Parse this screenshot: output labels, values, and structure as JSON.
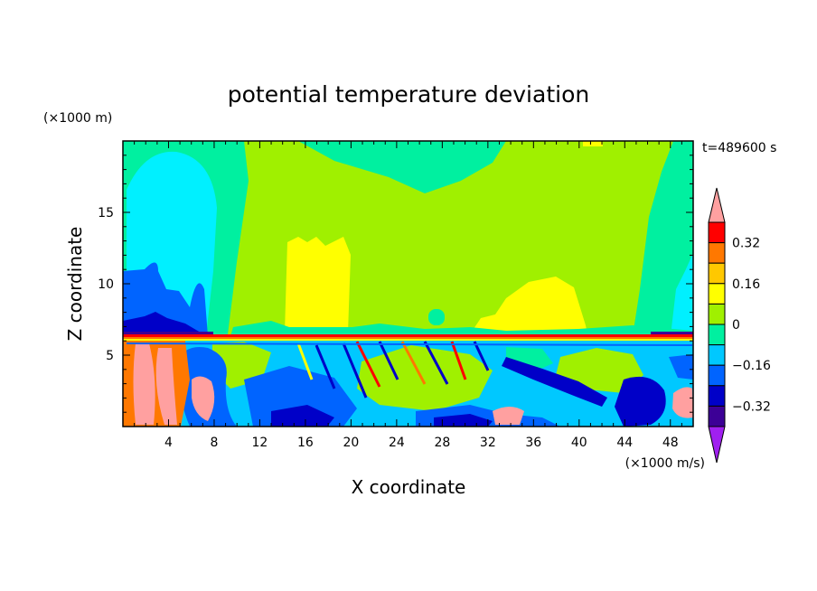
{
  "chart_data": {
    "type": "heatmap",
    "title": "potential temperature deviation",
    "xlabel": "X coordinate",
    "ylabel": "Z coordinate",
    "x_unit": "(×1000 m/s)",
    "y_unit": "(×1000 m)",
    "time_label": "t=489600 s",
    "xlim": [
      0,
      50
    ],
    "ylim": [
      0,
      20
    ],
    "x_ticks": [
      4,
      8,
      12,
      16,
      20,
      24,
      28,
      32,
      36,
      40,
      44,
      48
    ],
    "y_ticks": [
      5,
      10,
      15
    ],
    "colorbar": {
      "labels": [
        "0.32",
        "0.16",
        "0",
        "−0.16",
        "−0.32"
      ],
      "label_values": [
        0.32,
        0.16,
        0,
        -0.16,
        -0.32
      ],
      "levels": [
        -0.4,
        -0.32,
        -0.24,
        -0.16,
        -0.08,
        0,
        0.08,
        0.16,
        0.24,
        0.32,
        0.4
      ],
      "colors": [
        "#a020f0",
        "#3c0096",
        "#0000c8",
        "#0064ff",
        "#00c8ff",
        "#00f0a0",
        "#a0f000",
        "#ffff00",
        "#ffc800",
        "#ff7800",
        "#ff0000",
        "#ffa0a0"
      ]
    },
    "field_regions": [
      {
        "label": "upper-layer background",
        "value": 0.04,
        "color": "#a0f000"
      },
      {
        "label": "left upper cyan plume",
        "value": -0.1,
        "color": "#00f0ff"
      },
      {
        "label": "left mid-level negative anomaly",
        "value": -0.2,
        "color": "#0064ff"
      },
      {
        "label": "upper warm anomaly near x=16-20",
        "value": 0.12,
        "color": "#ffff00"
      },
      {
        "label": "upper warm anomaly near x=33-39",
        "value": 0.12,
        "color": "#ffff00"
      },
      {
        "label": "inversion layer near z=6.5",
        "value": 0.3,
        "color": "#ff0000"
      },
      {
        "label": "lower-layer turbulent field",
        "value": -0.1,
        "color": "#00c8ff"
      },
      {
        "label": "lower-left strong positive anomaly",
        "value": 0.42,
        "color": "#ffa0a0"
      }
    ]
  }
}
